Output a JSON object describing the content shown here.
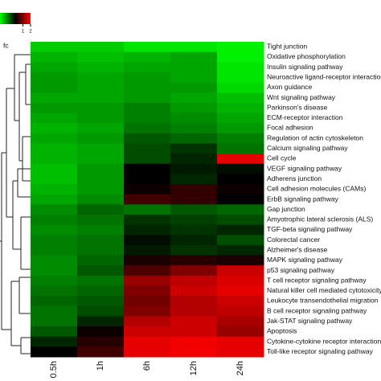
{
  "chart_data": {
    "type": "heatmap",
    "legend_label": "fc",
    "color_range": [
      -2,
      2
    ],
    "color_ticks": [
      1,
      2
    ],
    "colors": {
      "low": "#00ff00",
      "mid": "#000000",
      "high": "#ff0000"
    },
    "columns": [
      "0.5h",
      "1h",
      "6h",
      "12h",
      "24h"
    ],
    "rows": [
      "Tight junction",
      "Oxidative phosphorylation",
      "Insulin signaling pathway",
      "Neuroactive ligand-receptor interaction",
      "Axon guidance",
      "Wnt signaling pathway",
      "Parkinson's disease",
      "ECM-receptor interaction",
      "Focal adhesion",
      "Regulation of actin cytoskeleton",
      "Calcium signaling pathway",
      "Cell cycle",
      "VEGF signaling pathway",
      "Adherens junction",
      "Cell adhesion molecules (CAMs)",
      "ErbB signaling pathway",
      "Gap junction",
      "Amyotrophic lateral sclerosis (ALS)",
      "TGF-beta signaling pathway",
      "Colorectal cancer",
      "Alzheimer's disease",
      "MAPK signaling pathway",
      "p53 signaling pathway",
      "T cell receptor signaling pathway",
      "Natural killer cell mediated cytotoxicity",
      "Leukocyte transendothelial migration",
      "B cell receptor signaling pathway",
      "Jak-STAT signaling pathway",
      "Apoptosis",
      "Cytokine-cytokine receptor interaction",
      "Toll-like receptor signaling pathway"
    ],
    "values": [
      [
        -1.6,
        -1.6,
        -1.8,
        -1.8,
        -1.9
      ],
      [
        -1.4,
        -1.5,
        -1.4,
        -1.3,
        -1.9
      ],
      [
        -1.3,
        -1.4,
        -1.3,
        -1.3,
        -1.8
      ],
      [
        -1.2,
        -1.3,
        -1.2,
        -1.3,
        -1.8
      ],
      [
        -1.2,
        -1.3,
        -1.2,
        -1.2,
        -1.7
      ],
      [
        -1.3,
        -1.3,
        -1.2,
        -1.3,
        -1.5
      ],
      [
        -1.2,
        -1.2,
        -1.0,
        -1.2,
        -1.4
      ],
      [
        -1.3,
        -1.2,
        -1.0,
        -1.1,
        -1.3
      ],
      [
        -1.4,
        -1.3,
        -0.9,
        -1.0,
        -1.2
      ],
      [
        -1.3,
        -1.2,
        -0.7,
        -0.8,
        -1.0
      ],
      [
        -1.4,
        -1.3,
        -0.6,
        -0.4,
        -0.9
      ],
      [
        -1.4,
        -1.3,
        -0.6,
        -0.3,
        1.8
      ],
      [
        -1.5,
        -1.2,
        0.0,
        -0.2,
        -0.1
      ],
      [
        -1.5,
        -1.2,
        0.0,
        -0.3,
        0.0
      ],
      [
        -1.4,
        -1.2,
        0.1,
        0.4,
        0.1
      ],
      [
        -1.3,
        -1.1,
        0.5,
        0.4,
        0.0
      ],
      [
        -1.1,
        -0.8,
        -0.9,
        -0.7,
        -0.8
      ],
      [
        -1.0,
        -0.9,
        -0.4,
        -0.5,
        -0.6
      ],
      [
        -1.1,
        -1.0,
        -0.3,
        -0.4,
        -0.3
      ],
      [
        -1.0,
        -0.9,
        -0.1,
        -0.3,
        -0.6
      ],
      [
        -1.0,
        -0.9,
        -0.2,
        -0.4,
        -0.3
      ],
      [
        -1.1,
        -0.8,
        0.2,
        0.3,
        0.2
      ],
      [
        -1.1,
        -0.7,
        0.6,
        1.0,
        1.6
      ],
      [
        -1.0,
        -0.9,
        1.2,
        1.5,
        1.7
      ],
      [
        -0.9,
        -0.8,
        1.0,
        1.6,
        1.8
      ],
      [
        -0.8,
        -0.7,
        0.9,
        1.4,
        1.6
      ],
      [
        -0.9,
        -0.6,
        1.0,
        1.4,
        1.5
      ],
      [
        -0.9,
        -0.3,
        1.4,
        1.6,
        1.3
      ],
      [
        -0.7,
        0.1,
        1.6,
        1.6,
        1.2
      ],
      [
        -0.3,
        0.3,
        1.8,
        1.9,
        1.8
      ],
      [
        0.0,
        0.5,
        1.8,
        1.9,
        1.8
      ]
    ]
  }
}
